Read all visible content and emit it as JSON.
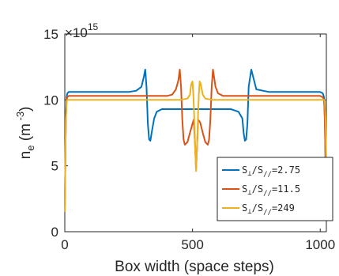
{
  "chart_data": {
    "type": "line",
    "title": "",
    "xlabel": "Box width (space steps)",
    "ylabel_main": "n",
    "ylabel_sub": "e",
    "ylabel_unit_open": " (m",
    "ylabel_unit_exp": " -3",
    "ylabel_unit_close": ")",
    "exponent_prefix": "×10",
    "exponent_power": "15",
    "xlim": [
      0,
      1024
    ],
    "ylim": [
      0,
      15
    ],
    "xticks": [
      0,
      500,
      1000
    ],
    "yticks": [
      0,
      5,
      10,
      15
    ],
    "xtick_labels": [
      "0",
      "500",
      "1000"
    ],
    "ytick_labels": [
      "0",
      "5",
      "10",
      "15"
    ],
    "grid": false,
    "legend_position": "lower-right",
    "series": [
      {
        "name": "S⊥/S//=2.75",
        "label_a": "S",
        "label_b": "⊥",
        "label_c": "/S",
        "label_d": "//",
        "label_e": "=2.75",
        "color": "#0072BD",
        "x": [
          0,
          2,
          4,
          7,
          10,
          15,
          25,
          50,
          100,
          150,
          200,
          250,
          280,
          300,
          310,
          315,
          320,
          325,
          330,
          335,
          340,
          350,
          360,
          380,
          400,
          450,
          500,
          550,
          600,
          650,
          680,
          695,
          700,
          705,
          710,
          715,
          720,
          730,
          750,
          800,
          850,
          900,
          950,
          1000,
          1010,
          1015,
          1018,
          1021,
          1024
        ],
        "y": [
          1.5,
          5.0,
          8.5,
          10.2,
          10.5,
          10.6,
          10.6,
          10.6,
          10.6,
          10.6,
          10.6,
          10.6,
          10.7,
          11.0,
          11.8,
          12.3,
          11.0,
          8.2,
          7.0,
          6.9,
          7.5,
          8.6,
          9.1,
          9.3,
          9.3,
          9.3,
          9.3,
          9.3,
          9.3,
          9.3,
          9.1,
          8.6,
          7.5,
          6.9,
          7.0,
          8.2,
          11.0,
          12.3,
          10.8,
          10.6,
          10.6,
          10.6,
          10.6,
          10.6,
          10.5,
          10.2,
          8.5,
          5.0,
          1.5
        ]
      },
      {
        "name": "S⊥/S//=11.5",
        "label_a": "S",
        "label_b": "⊥",
        "label_c": "/S",
        "label_d": "//",
        "label_e": "=11.5",
        "color": "#D95319",
        "x": [
          0,
          2,
          4,
          7,
          10,
          15,
          25,
          50,
          100,
          200,
          300,
          350,
          400,
          420,
          435,
          445,
          450,
          455,
          460,
          465,
          470,
          480,
          490,
          500,
          505,
          510,
          514,
          518,
          522,
          530,
          540,
          550,
          560,
          565,
          570,
          575,
          580,
          590,
          600,
          620,
          650,
          700,
          800,
          900,
          1000,
          1010,
          1015,
          1018,
          1021,
          1024
        ],
        "y": [
          1.5,
          5.0,
          8.5,
          10.0,
          10.2,
          10.3,
          10.3,
          10.3,
          10.3,
          10.3,
          10.3,
          10.3,
          10.3,
          10.4,
          10.8,
          11.5,
          12.3,
          11.0,
          8.5,
          7.0,
          6.6,
          6.8,
          7.5,
          8.2,
          8.5,
          6.5,
          4.7,
          6.5,
          8.5,
          8.3,
          7.5,
          6.8,
          6.6,
          7.0,
          8.5,
          11.0,
          12.3,
          11.0,
          10.5,
          10.3,
          10.3,
          10.3,
          10.3,
          10.3,
          10.3,
          10.2,
          10.0,
          8.5,
          5.0,
          1.5
        ]
      },
      {
        "name": "S⊥/S//=249",
        "label_a": "S",
        "label_b": "⊥",
        "label_c": "/S",
        "label_d": "//",
        "label_e": "=249",
        "color": "#EDB120",
        "x": [
          0,
          2,
          4,
          7,
          10,
          15,
          25,
          50,
          100,
          200,
          300,
          400,
          450,
          480,
          490,
          495,
          500,
          503,
          506,
          510,
          514,
          518,
          522,
          525,
          528,
          532,
          540,
          550,
          580,
          650,
          800,
          900,
          1000,
          1010,
          1015,
          1018,
          1021,
          1024
        ],
        "y": [
          1.5,
          5.0,
          8.5,
          9.9,
          10.0,
          10.0,
          10.0,
          10.0,
          10.0,
          10.0,
          10.0,
          10.0,
          10.0,
          10.1,
          10.4,
          11.2,
          11.4,
          10.5,
          9.0,
          6.5,
          4.6,
          6.5,
          9.0,
          10.5,
          11.4,
          11.2,
          10.4,
          10.1,
          10.0,
          10.0,
          10.0,
          10.0,
          10.0,
          10.0,
          10.0,
          9.9,
          8.5,
          5.0
        ]
      }
    ]
  }
}
